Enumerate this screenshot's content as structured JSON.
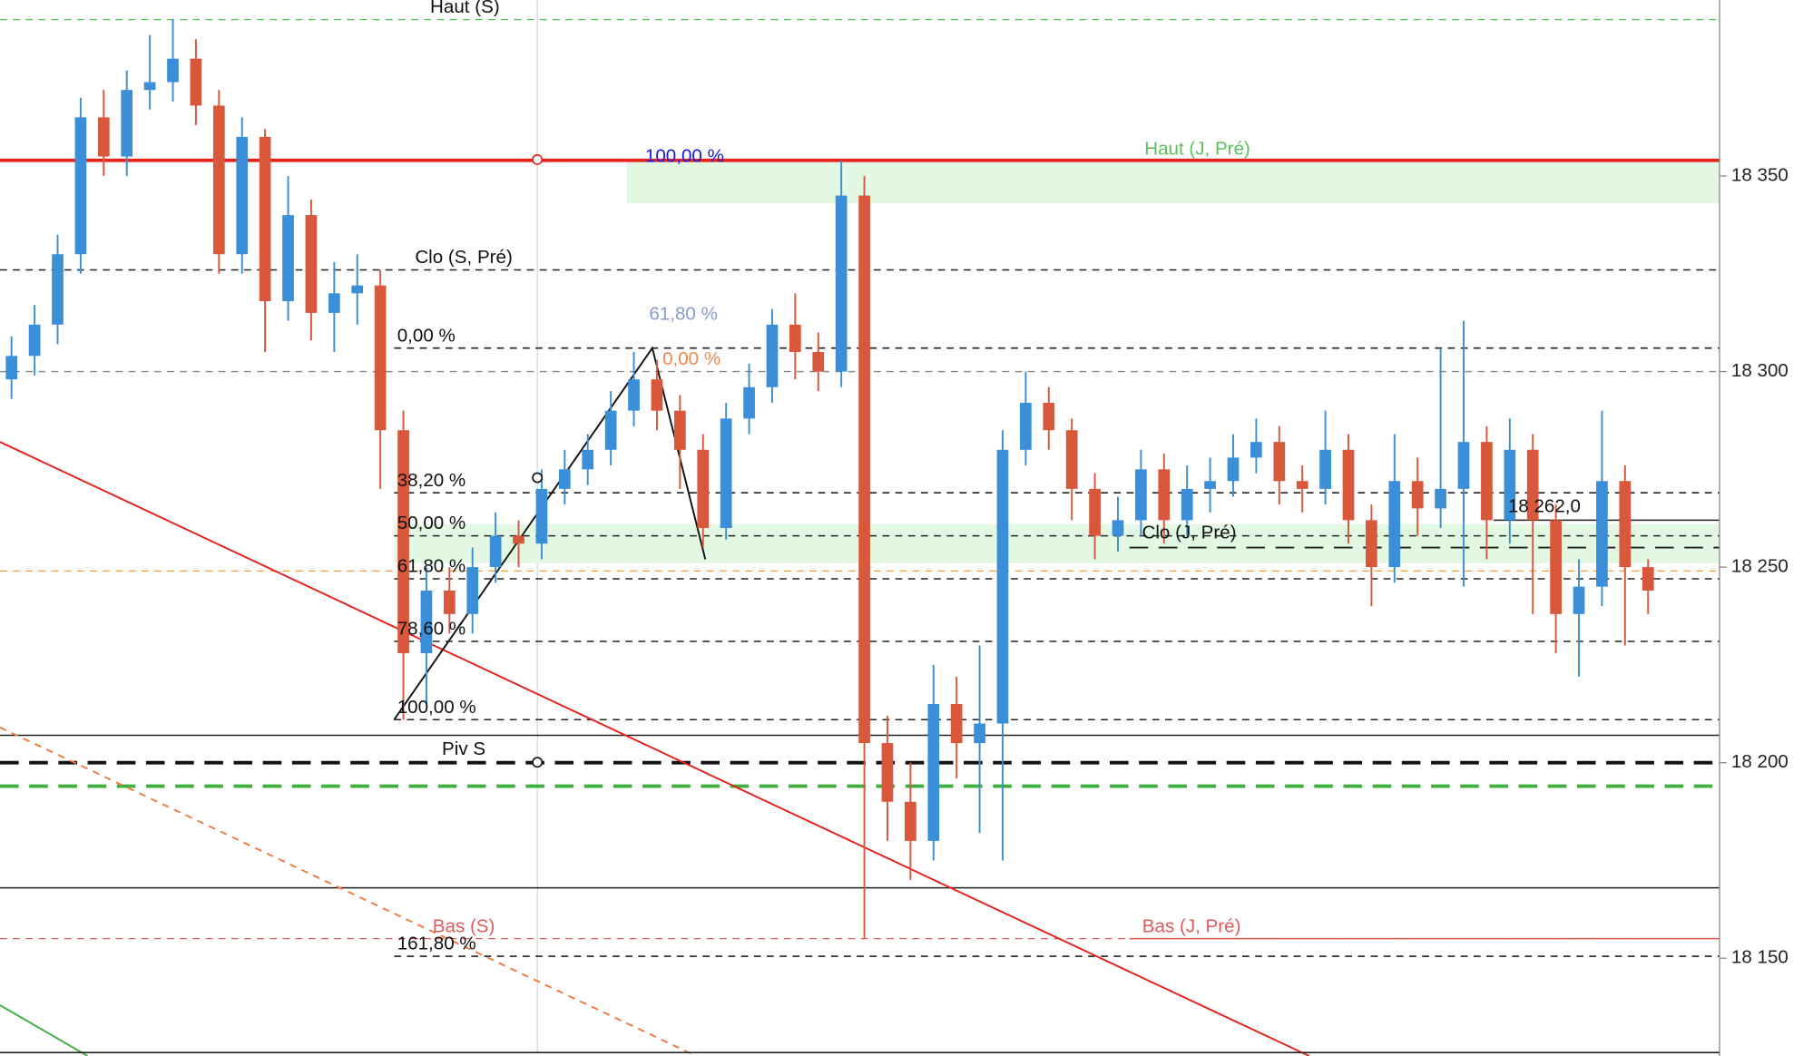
{
  "chart_data": {
    "type": "candlestick",
    "x": [
      0,
      1,
      2,
      3,
      4,
      5,
      6,
      7,
      8,
      9,
      10,
      11,
      12,
      13,
      14,
      15,
      16,
      17,
      18,
      19,
      20,
      21,
      22,
      23,
      24,
      25,
      26,
      27,
      28,
      29,
      30,
      31,
      32,
      33,
      34,
      35,
      36,
      37,
      38,
      39,
      40,
      41,
      42,
      43,
      44,
      45,
      46,
      47,
      48,
      49,
      50,
      51,
      52,
      53,
      54,
      55,
      56,
      57,
      58,
      59,
      60,
      61,
      62,
      63,
      64,
      65,
      66,
      67,
      68,
      69,
      70,
      71
    ],
    "open": [
      18298,
      18304,
      18312,
      18330,
      18365,
      18355,
      18372,
      18374,
      18380,
      18368,
      18330,
      18360,
      18318,
      18340,
      18315,
      18320,
      18322,
      18285,
      18228,
      18244,
      18238,
      18250,
      18258,
      18256,
      18270,
      18275,
      18280,
      18290,
      18298,
      18290,
      18280,
      18260,
      18288,
      18296,
      18312,
      18305,
      18300,
      18345,
      18205,
      18190,
      18180,
      18215,
      18205,
      18210,
      18280,
      18292,
      18285,
      18270,
      18258,
      18262,
      18275,
      18262,
      18270,
      18272,
      18278,
      18282,
      18272,
      18270,
      18280,
      18262,
      18250,
      18272,
      18265,
      18270,
      18282,
      18262,
      18280,
      18262,
      18238,
      18245,
      18272,
      18250
    ],
    "high": [
      18309,
      18317,
      18335,
      18370,
      18372,
      18377,
      18386,
      18390,
      18385,
      18372,
      18365,
      18362,
      18350,
      18344,
      18328,
      18330,
      18326,
      18290,
      18250,
      18250,
      18255,
      18264,
      18262,
      18275,
      18280,
      18284,
      18295,
      18305,
      18303,
      18294,
      18284,
      18292,
      18302,
      18316,
      18320,
      18310,
      18354,
      18350,
      18212,
      18200,
      18225,
      18222,
      18230,
      18285,
      18300,
      18296,
      18288,
      18274,
      18268,
      18280,
      18279,
      18276,
      18278,
      18284,
      18288,
      18286,
      18276,
      18290,
      18284,
      18266,
      18284,
      18278,
      18306,
      18313,
      18286,
      18288,
      18284,
      18266,
      18252,
      18290,
      18276,
      18252
    ],
    "low": [
      18293,
      18299,
      18307,
      18325,
      18350,
      18350,
      18367,
      18369,
      18363,
      18325,
      18325,
      18305,
      18313,
      18308,
      18305,
      18312,
      18270,
      18211,
      18215,
      18233,
      18233,
      18246,
      18250,
      18252,
      18266,
      18271,
      18276,
      18286,
      18285,
      18270,
      18255,
      18257,
      18284,
      18292,
      18298,
      18295,
      18296,
      18155,
      18180,
      18170,
      18175,
      18196,
      18182,
      18175,
      18276,
      18280,
      18262,
      18252,
      18254,
      18258,
      18256,
      18258,
      18264,
      18268,
      18274,
      18266,
      18264,
      18266,
      18256,
      18240,
      18246,
      18258,
      18260,
      18245,
      18252,
      18256,
      18238,
      18228,
      18222,
      18240,
      18230,
      18238
    ],
    "close": [
      18304,
      18312,
      18330,
      18365,
      18355,
      18372,
      18374,
      18380,
      18368,
      18330,
      18360,
      18318,
      18340,
      18315,
      18320,
      18322,
      18285,
      18228,
      18244,
      18238,
      18250,
      18258,
      18256,
      18270,
      18275,
      18280,
      18290,
      18298,
      18290,
      18280,
      18260,
      18288,
      18296,
      18312,
      18305,
      18300,
      18345,
      18205,
      18190,
      18180,
      18215,
      18205,
      18210,
      18280,
      18292,
      18285,
      18270,
      18258,
      18262,
      18275,
      18262,
      18270,
      18272,
      18278,
      18282,
      18272,
      18270,
      18280,
      18262,
      18250,
      18272,
      18265,
      18270,
      18282,
      18262,
      18280,
      18262,
      18238,
      18245,
      18272,
      18250,
      18244
    ],
    "up_color": "#3a8fd8",
    "down_color": "#d9573b",
    "xlim": [
      -0.5,
      74
    ],
    "ylim": [
      18125,
      18395
    ],
    "yticks": [
      {
        "value": 18150,
        "label": "18 150"
      },
      {
        "value": 18200,
        "label": "18 200"
      },
      {
        "value": 18250,
        "label": "18 250"
      },
      {
        "value": 18300,
        "label": "18 300"
      },
      {
        "value": 18350,
        "label": "18 350"
      }
    ],
    "bands": [
      {
        "from": 26.7,
        "range": [
          18343,
          18354
        ],
        "color": "#e2f8e2"
      },
      {
        "from": 16.6,
        "range": [
          18251,
          18261
        ],
        "color": "#e2f8e2"
      }
    ],
    "levels": [
      {
        "label": "Haut (S)",
        "value": 18390,
        "from": -0.5,
        "color": "#5cc15c",
        "style": "dash",
        "width": 1
      },
      {
        "label": "Haut (J, Pré)",
        "label_color": "#5cc15c",
        "value": 18354,
        "from": -0.5,
        "color": "#e8201a",
        "style": "solid",
        "width": 3
      },
      {
        "label": "Clo (S, Pré)",
        "value": 18326,
        "from": -0.5,
        "color": "#222222",
        "style": "dash",
        "width": 1.2
      },
      {
        "label": "0,00 %",
        "value": 18306,
        "from": 16.6,
        "color": "#222222",
        "style": "dash",
        "width": 1.2
      },
      {
        "value": 18300,
        "from": -0.5,
        "color": "#888888",
        "style": "dash",
        "width": 1
      },
      {
        "label": "38,20 %",
        "value": 18269,
        "from": 16.6,
        "color": "#222222",
        "style": "dash",
        "width": 1.2
      },
      {
        "label": "50,00 %",
        "value": 18258,
        "from": 16.6,
        "color": "#222222",
        "style": "dash",
        "width": 1.2
      },
      {
        "value": 18249,
        "from": -0.5,
        "color": "#f0a030",
        "style": "dash",
        "width": 1
      },
      {
        "label": "61,80 %",
        "value": 18247,
        "from": 16.6,
        "color": "#222222",
        "style": "dash",
        "width": 1.2
      },
      {
        "label": "78,60 %",
        "value": 18231,
        "from": 16.6,
        "color": "#222222",
        "style": "dash",
        "width": 1.2
      },
      {
        "label": "100,00 %",
        "value": 18211,
        "from": 16.6,
        "color": "#222222",
        "style": "dash",
        "width": 1.2
      },
      {
        "value": 18207,
        "from": -0.5,
        "color": "#222222",
        "style": "solid",
        "width": 1.2
      },
      {
        "label": "Piv S",
        "value": 18200,
        "from": -0.5,
        "color": "#111111",
        "style": "longdash",
        "width": 3
      },
      {
        "value": 18194,
        "from": -0.5,
        "color": "#3fb03f",
        "style": "longdash",
        "width": 3
      },
      {
        "value": 18168,
        "from": -0.5,
        "color": "#222222",
        "style": "solid",
        "width": 1.2
      },
      {
        "label": "Bas (S)",
        "label_color": "#e05a5a",
        "value": 18155,
        "from": -0.5,
        "color": "#e05a5a",
        "style": "dash",
        "width": 1
      },
      {
        "label": "Bas (J, Pré)",
        "label_color": "#e05a5a",
        "value": 18155,
        "from": 48.5,
        "color": "#e05a5a",
        "style": "solid",
        "width": 1.2
      },
      {
        "label": "18 262,0",
        "value": 18262,
        "from": 64.3,
        "color": "#222222",
        "style": "solid",
        "width": 1.2
      },
      {
        "label": "Clo (J, Pré)",
        "value": 18255,
        "from": 48.5,
        "color": "#222222",
        "style": "longdash",
        "width": 1.5
      },
      {
        "label": "161,80 %",
        "value": 18150.5,
        "from": 16.6,
        "color": "#222222",
        "style": "dash",
        "width": 1.2
      },
      {
        "label": "100,00 %",
        "label_color": "#1a1adf",
        "value": 18354,
        "from": 26.7,
        "color": "none",
        "style": "none",
        "width": 0
      },
      {
        "label": "61,80 %",
        "label_color": "#8a9bd0",
        "value": 18314.5,
        "from": 26.7,
        "color": "none",
        "style": "none",
        "width": 0
      },
      {
        "label": "0,00 %",
        "label_color": "#f08a50",
        "value": 18303,
        "from": 26.7,
        "color": "none",
        "style": "none",
        "width": 0
      }
    ],
    "drawings": [
      {
        "color": "#e8201a",
        "style": "solid",
        "points": [
          [
            -0.5,
            18282
          ],
          [
            56.3,
            18125
          ]
        ]
      },
      {
        "color": "#f07a40",
        "style": "dash",
        "points": [
          [
            -0.5,
            18209
          ],
          [
            29.7,
            18125
          ]
        ]
      },
      {
        "color": "#3fb03f",
        "style": "solid",
        "points": [
          [
            -0.5,
            18138
          ],
          [
            3.3,
            18125
          ]
        ]
      },
      {
        "color": "#111111",
        "style": "solid",
        "points": [
          [
            16.6,
            18211
          ],
          [
            27.8,
            18306
          ],
          [
            30.1,
            18252
          ]
        ]
      }
    ]
  }
}
